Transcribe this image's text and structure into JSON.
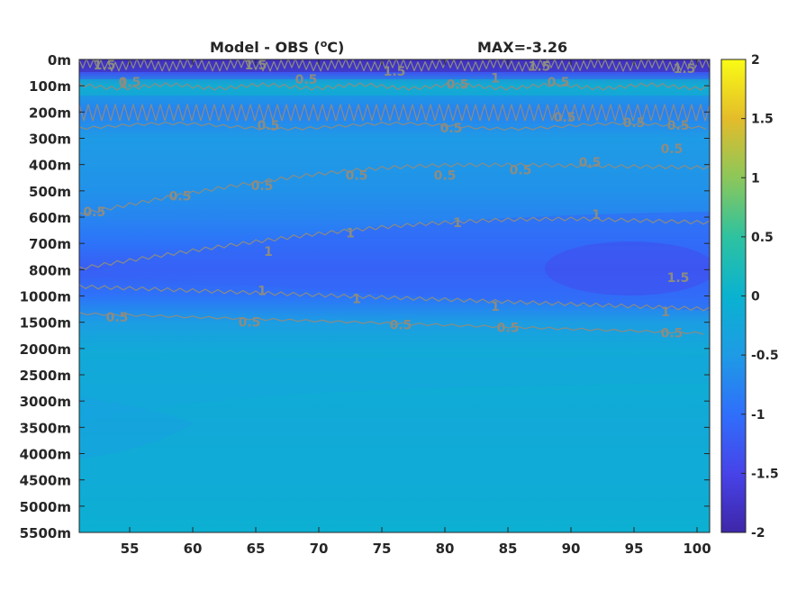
{
  "chart_data": {
    "type": "heatmap",
    "title_left": "Model - OBS (",
    "title_unit_sup": "o",
    "title_unit": "C)",
    "title_right": "MAX=-3.26",
    "xlabel": "",
    "ylabel": "",
    "x_ticks": [
      "55",
      "60",
      "65",
      "70",
      "75",
      "80",
      "85",
      "90",
      "95",
      "100"
    ],
    "x_tick_values": [
      55,
      60,
      65,
      70,
      75,
      80,
      85,
      90,
      95,
      100
    ],
    "xlim": [
      51,
      101
    ],
    "y_ticks": [
      "0m",
      "100m",
      "200m",
      "300m",
      "400m",
      "500m",
      "600m",
      "700m",
      "800m",
      "1000m",
      "1500m",
      "2000m",
      "2500m",
      "3000m",
      "3500m",
      "4000m",
      "4500m",
      "5000m",
      "5500m"
    ],
    "colorbar": {
      "ticks": [
        "2",
        "1.5",
        "1",
        "0.5",
        "0",
        "-0.5",
        "-1",
        "-1.5",
        "-2"
      ],
      "tick_values": [
        2,
        1.5,
        1,
        0.5,
        0,
        -0.5,
        -1,
        -1.5,
        -2
      ],
      "clim": [
        -2,
        2
      ],
      "colormap": "parula",
      "colors": [
        "#3e26a8",
        "#4743e9",
        "#2f6ffb",
        "#1e9be5",
        "#0ab2d0",
        "#2ec2a0",
        "#8cc75a",
        "#e4bc2a",
        "#f9fb15"
      ]
    },
    "approx_field": {
      "note_levels": "value per depth level (index into y_ticks), roughly uniform across x",
      "depth_index": [
        0,
        0.5,
        1,
        2,
        3,
        4,
        5,
        6,
        7,
        8,
        9,
        10,
        11,
        12,
        13,
        14,
        15,
        16,
        17,
        18
      ],
      "value": [
        -1.8,
        -1.3,
        -0.3,
        -0.8,
        -0.5,
        -0.55,
        -0.6,
        -0.75,
        -0.95,
        -1.2,
        -0.95,
        -0.45,
        -0.2,
        -0.1,
        -0.15,
        -0.2,
        -0.15,
        -0.15,
        -0.1,
        -0.05
      ]
    },
    "contour_labels": [
      {
        "text": "1.5"
      },
      {
        "text": "1"
      },
      {
        "text": "1.5"
      },
      {
        "text": "1.5"
      },
      {
        "text": "1.5"
      },
      {
        "text": "1.5"
      },
      {
        "text": "0.5"
      },
      {
        "text": "0.5"
      },
      {
        "text": "0.5"
      },
      {
        "text": "1"
      },
      {
        "text": "0.5"
      },
      {
        "text": "0.5"
      },
      {
        "text": "0.5"
      },
      {
        "text": "0.5"
      },
      {
        "text": "0.5"
      },
      {
        "text": "0.5"
      },
      {
        "text": "0.5"
      },
      {
        "text": "0.5"
      },
      {
        "text": "0.5"
      },
      {
        "text": "0.5"
      },
      {
        "text": "0.5"
      },
      {
        "text": "0.5"
      },
      {
        "text": "0.5"
      },
      {
        "text": "0.5"
      },
      {
        "text": "1"
      },
      {
        "text": "1"
      },
      {
        "text": "1"
      },
      {
        "text": "1"
      },
      {
        "text": "1"
      },
      {
        "text": "1"
      },
      {
        "text": "1"
      },
      {
        "text": "1"
      },
      {
        "text": "1.5"
      },
      {
        "text": "0.5"
      },
      {
        "text": "0.5"
      },
      {
        "text": "0.5"
      },
      {
        "text": "0.5"
      },
      {
        "text": "0.5"
      }
    ]
  }
}
